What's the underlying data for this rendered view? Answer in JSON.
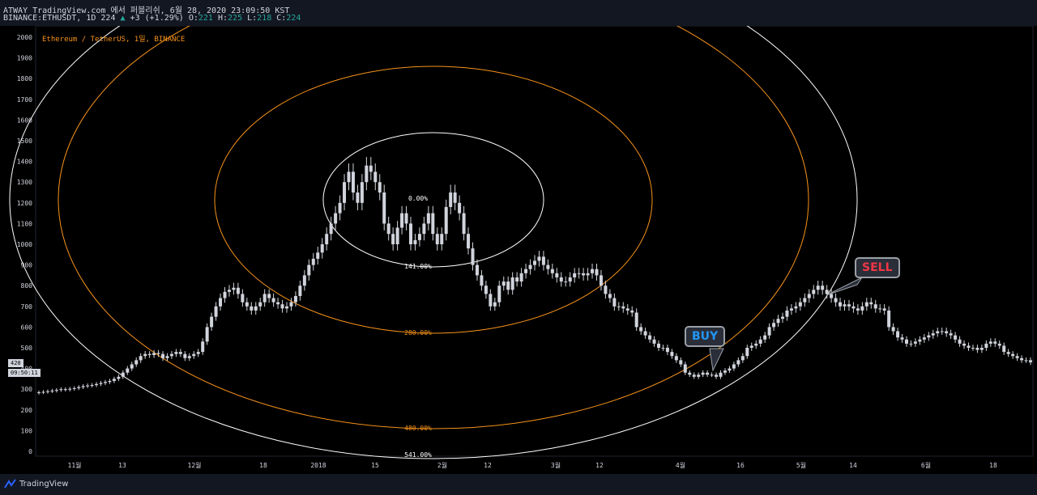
{
  "header": {
    "line1": "ATWAY TradingView.com 에서 퍼블리쉬, 6월 28, 2020 23:09:50 KST",
    "symbol": "BINANCE:ETHUSDT, 1D 224",
    "change": "+3 (+1.29%)",
    "ohlc": [
      {
        "k": "O:",
        "v": "221"
      },
      {
        "k": "H:",
        "v": "225"
      },
      {
        "k": "L:",
        "v": "218"
      },
      {
        "k": "C:",
        "v": "224"
      }
    ]
  },
  "chart_subtitle": "Ethereum / TetherUS, 1일, BINANCE",
  "price_tag": "420",
  "time_tag": "09:50:11",
  "buy_label": "BUY",
  "sell_label": "SELL",
  "footer_brand": "TradingView",
  "colors": {
    "background": "#000000",
    "candle": "#d1d4dc",
    "inner_ellipse": "#ffffff",
    "orange_ellipse": "#f7931a",
    "buy": "#2196f3",
    "sell": "#f23645"
  },
  "chart_data": {
    "type": "candlestick",
    "ylim": [
      0,
      2000
    ],
    "y_ticks": [
      2000,
      1900,
      1800,
      1700,
      1600,
      1500,
      1400,
      1300,
      1200,
      1100,
      1000,
      900,
      800,
      700,
      600,
      500,
      400,
      300,
      200,
      100,
      0
    ],
    "x_ticks": [
      "11월",
      "13",
      "12월",
      "18",
      "2018",
      "15",
      "2월",
      "12",
      "3월",
      "12",
      "4월",
      "16",
      "5월",
      "14",
      "6월",
      "18"
    ],
    "fib_levels": [
      "0.00%",
      "141.00%",
      "280.00%",
      "480.00%",
      "541.00%"
    ],
    "close_series": [
      285,
      287,
      290,
      293,
      296,
      300,
      298,
      302,
      305,
      310,
      315,
      318,
      320,
      325,
      330,
      335,
      340,
      350,
      360,
      380,
      400,
      420,
      440,
      460,
      470,
      465,
      475,
      470,
      450,
      460,
      470,
      480,
      470,
      450,
      460,
      470,
      480,
      530,
      600,
      650,
      700,
      740,
      770,
      780,
      790,
      760,
      720,
      700,
      680,
      700,
      720,
      760,
      740,
      720,
      710,
      690,
      700,
      720,
      750,
      800,
      850,
      900,
      930,
      960,
      1000,
      1050,
      1100,
      1150,
      1200,
      1300,
      1350,
      1250,
      1200,
      1300,
      1380,
      1350,
      1300,
      1250,
      1100,
      1050,
      1000,
      1080,
      1150,
      1100,
      1000,
      1020,
      1050,
      1100,
      1150,
      1050,
      1000,
      1050,
      1180,
      1250,
      1200,
      1150,
      1050,
      980,
      900,
      850,
      800,
      760,
      700,
      720,
      800,
      820,
      780,
      840,
      820,
      860,
      880,
      900,
      920,
      940,
      900,
      880,
      860,
      840,
      820,
      820,
      840,
      860,
      860,
      850,
      860,
      880,
      850,
      800,
      760,
      740,
      700,
      700,
      690,
      680,
      670,
      600,
      580,
      560,
      540,
      520,
      500,
      500,
      480,
      460,
      440,
      420,
      380,
      370,
      360,
      370,
      380,
      370,
      370,
      360,
      380,
      390,
      400,
      420,
      440,
      460,
      500,
      510,
      520,
      540,
      560,
      600,
      620,
      640,
      650,
      680,
      690,
      700,
      720,
      740,
      760,
      780,
      800,
      780,
      760,
      740,
      720,
      700,
      710,
      700,
      690,
      680,
      700,
      720,
      710,
      690,
      690,
      680,
      600,
      580,
      550,
      540,
      520,
      520,
      530,
      540,
      550,
      560,
      570,
      580,
      580,
      570,
      560,
      540,
      520,
      510,
      500,
      500,
      490,
      500,
      520,
      530,
      520,
      510,
      480,
      470,
      460,
      450,
      440,
      440,
      430
    ]
  }
}
